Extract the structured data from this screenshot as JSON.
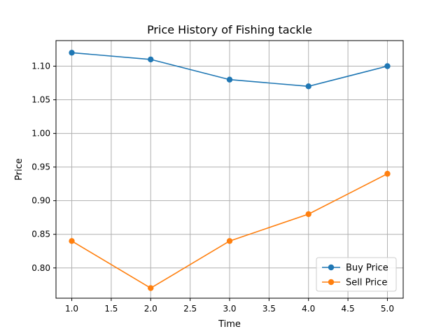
{
  "chart_data": {
    "type": "line",
    "title": "Price History of Fishing tackle",
    "xlabel": "Time",
    "ylabel": "Price",
    "x": [
      1.0,
      2.0,
      3.0,
      4.0,
      5.0
    ],
    "xlim": [
      0.8,
      5.2
    ],
    "ylim": [
      0.755,
      1.138
    ],
    "xticks": [
      1.0,
      1.5,
      2.0,
      2.5,
      3.0,
      3.5,
      4.0,
      4.5,
      5.0
    ],
    "xtick_labels": [
      "1.0",
      "1.5",
      "2.0",
      "2.5",
      "3.0",
      "3.5",
      "4.0",
      "4.5",
      "5.0"
    ],
    "yticks": [
      0.8,
      0.85,
      0.9,
      0.95,
      1.0,
      1.05,
      1.1
    ],
    "ytick_labels": [
      "0.80",
      "0.85",
      "0.90",
      "0.95",
      "1.00",
      "1.05",
      "1.10"
    ],
    "grid": true,
    "legend_position": "lower-right",
    "series": [
      {
        "name": "Buy Price",
        "values": [
          1.12,
          1.11,
          1.08,
          1.07,
          1.1
        ],
        "color": "#1f77b4",
        "marker": "circle"
      },
      {
        "name": "Sell Price",
        "values": [
          0.84,
          0.77,
          0.84,
          0.88,
          0.94
        ],
        "color": "#ff7f0e",
        "marker": "circle"
      }
    ]
  }
}
